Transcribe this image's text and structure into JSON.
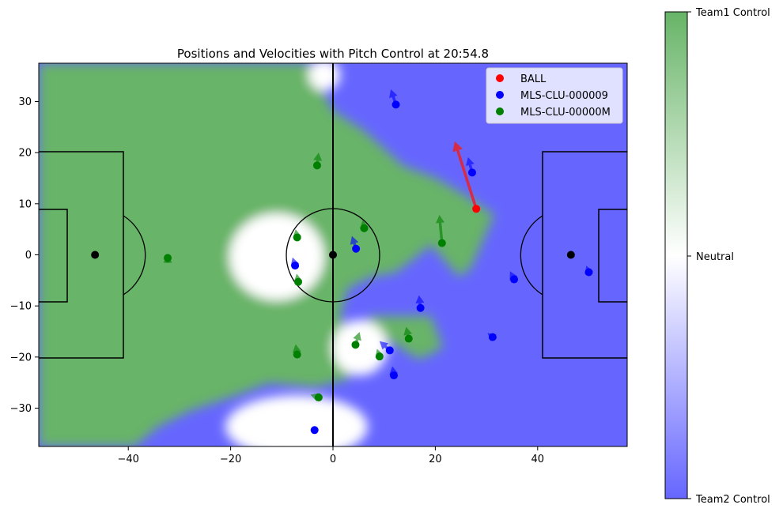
{
  "chart_data": {
    "type": "scatter",
    "title": "Positions and Velocities with Pitch Control at 20:54.8",
    "xlim": [
      -57.5,
      57.5
    ],
    "ylim": [
      -37.5,
      37.5
    ],
    "xticks": [
      -40,
      -20,
      0,
      20,
      40
    ],
    "yticks": [
      -30,
      -20,
      -10,
      0,
      10,
      20,
      30
    ],
    "grid": false,
    "legend_position": "top-right",
    "colors": {
      "ball": "#ff0000",
      "team_blue": "#0000ff",
      "team_green": "#008000",
      "pitch_green": "#67b467",
      "pitch_blue": "#6666ff",
      "ball_arrow": "#d62a45"
    },
    "series": [
      {
        "name": "BALL",
        "color": "#ff0000",
        "points": [
          {
            "x": 28,
            "y": 9,
            "vx": -4.2,
            "vy": 13.2
          }
        ]
      },
      {
        "name": "MLS-CLU-000009",
        "color": "#0000ff",
        "points": [
          {
            "x": 12.3,
            "y": 29.4,
            "vx": -1.0,
            "vy": 3.0
          },
          {
            "x": 27.2,
            "y": 16.1,
            "vx": -0.8,
            "vy": 3.0
          },
          {
            "x": 4.5,
            "y": 1.2,
            "vx": -0.8,
            "vy": 2.5
          },
          {
            "x": -7.4,
            "y": -2.1,
            "vx": -0.5,
            "vy": 1.6
          },
          {
            "x": 35.4,
            "y": -4.8,
            "vx": -0.8,
            "vy": 1.6
          },
          {
            "x": 50.0,
            "y": -3.4,
            "vx": -0.5,
            "vy": 1.3
          },
          {
            "x": 17.1,
            "y": -10.4,
            "vx": -0.3,
            "vy": 2.5
          },
          {
            "x": 31.2,
            "y": -16.1,
            "vx": -1.0,
            "vy": 0.8
          },
          {
            "x": 11.1,
            "y": -18.7,
            "vx": -2.0,
            "vy": 1.8
          },
          {
            "x": 11.9,
            "y": -23.6,
            "vx": -0.3,
            "vy": 1.8
          },
          {
            "x": -3.6,
            "y": -34.3,
            "vx": 0,
            "vy": 0
          }
        ]
      },
      {
        "name": "MLS-CLU-00000M",
        "color": "#008000",
        "points": [
          {
            "x": -3.1,
            "y": 17.5,
            "vx": 0.3,
            "vy": 2.5
          },
          {
            "x": -7.0,
            "y": 3.4,
            "vx": -0.3,
            "vy": 1.6
          },
          {
            "x": 6.1,
            "y": 5.2,
            "vx": -0.3,
            "vy": 1.6
          },
          {
            "x": 21.3,
            "y": 2.3,
            "vx": -0.5,
            "vy": 5.5
          },
          {
            "x": -32.3,
            "y": -0.6,
            "vx": 0,
            "vy": 0.6
          },
          {
            "x": -6.8,
            "y": -5.3,
            "vx": -0.3,
            "vy": 1.6
          },
          {
            "x": 4.4,
            "y": -17.6,
            "vx": 0.8,
            "vy": 2.5
          },
          {
            "x": 14.8,
            "y": -16.4,
            "vx": -0.5,
            "vy": 2.3
          },
          {
            "x": -7.0,
            "y": -19.5,
            "vx": -0.3,
            "vy": 2.0
          },
          {
            "x": 9.1,
            "y": -19.9,
            "vx": -0.5,
            "vy": 1.5
          },
          {
            "x": -2.8,
            "y": -27.9,
            "vx": -1.6,
            "vy": 0.5
          }
        ]
      }
    ],
    "extra_markers": {
      "color": "#000000",
      "points": [
        {
          "x": -46.5,
          "y": 0
        },
        {
          "x": 0,
          "y": 0
        },
        {
          "x": 46.5,
          "y": 0
        }
      ]
    },
    "colorbar": {
      "labels": [
        "Team1 Control",
        "Neutral",
        "Team2 Control"
      ],
      "colors": [
        "#67b467",
        "#ffffff",
        "#6666ff"
      ]
    }
  }
}
